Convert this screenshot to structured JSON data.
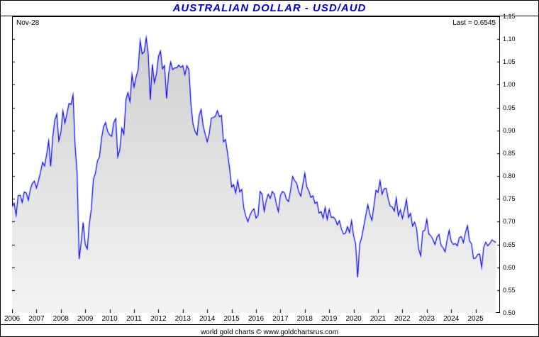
{
  "header": {
    "title": "AUSTRALIAN DOLLAR - USD/AUD"
  },
  "plot": {
    "date_label": "Nov-28",
    "last_label": "Last = 0.6545"
  },
  "footer": {
    "credit": "world gold charts © www.goldchartsrus.com"
  },
  "colors": {
    "title": "#0000c8",
    "line": "#0000ee",
    "fill_top": "#cdcdcd",
    "fill_bottom": "#f4f4f4",
    "axis_text": "#000000",
    "frame": "#000000"
  },
  "chart_data": {
    "type": "area",
    "title": "AUSTRALIAN DOLLAR - USD/AUD",
    "as_of": "Nov-28",
    "last": 0.6545,
    "x_start_year": 2006,
    "x_months_total": 240,
    "x_tick_years": [
      2006,
      2007,
      2008,
      2009,
      2010,
      2011,
      2012,
      2013,
      2014,
      2015,
      2016,
      2017,
      2018,
      2019,
      2020,
      2021,
      2022,
      2023,
      2024,
      2025
    ],
    "ylim": [
      0.5,
      1.15
    ],
    "y_tick_step": 0.05,
    "y_ticks": [
      0.5,
      0.55,
      0.6,
      0.65,
      0.7,
      0.75,
      0.8,
      0.85,
      0.9,
      0.95,
      1.0,
      1.05,
      1.1,
      1.15
    ],
    "grid": false,
    "legend": "none",
    "x_monthly": [
      0.733,
      0.741,
      0.714,
      0.757,
      0.758,
      0.742,
      0.765,
      0.763,
      0.747,
      0.771,
      0.784,
      0.789,
      0.774,
      0.79,
      0.808,
      0.83,
      0.822,
      0.847,
      0.877,
      0.821,
      0.885,
      0.922,
      0.936,
      0.877,
      0.895,
      0.943,
      0.916,
      0.937,
      0.959,
      0.957,
      0.978,
      0.867,
      0.806,
      0.618,
      0.655,
      0.698,
      0.65,
      0.64,
      0.695,
      0.728,
      0.792,
      0.806,
      0.833,
      0.842,
      0.882,
      0.908,
      0.917,
      0.898,
      0.89,
      0.887,
      0.917,
      0.926,
      0.842,
      0.858,
      0.905,
      0.892,
      0.967,
      0.983,
      0.963,
      1.023,
      0.995,
      1.017,
      1.033,
      1.097,
      1.068,
      1.072,
      1.103,
      1.067,
      0.967,
      1.045,
      1.005,
      1.023,
      1.062,
      1.074,
      1.035,
      1.042,
      0.97,
      1.024,
      1.05,
      1.033,
      1.037,
      1.037,
      1.043,
      1.038,
      1.042,
      1.022,
      1.042,
      1.033,
      0.957,
      0.914,
      0.898,
      0.89,
      0.932,
      0.946,
      0.91,
      0.892,
      0.875,
      0.893,
      0.927,
      0.928,
      0.931,
      0.943,
      0.93,
      0.933,
      0.875,
      0.88,
      0.85,
      0.817,
      0.776,
      0.781,
      0.763,
      0.79,
      0.765,
      0.771,
      0.729,
      0.712,
      0.7,
      0.714,
      0.723,
      0.728,
      0.708,
      0.714,
      0.766,
      0.76,
      0.723,
      0.746,
      0.76,
      0.751,
      0.766,
      0.76,
      0.739,
      0.722,
      0.758,
      0.766,
      0.763,
      0.749,
      0.744,
      0.769,
      0.799,
      0.79,
      0.784,
      0.766,
      0.756,
      0.781,
      0.806,
      0.776,
      0.767,
      0.753,
      0.757,
      0.74,
      0.743,
      0.719,
      0.722,
      0.708,
      0.731,
      0.705,
      0.727,
      0.709,
      0.71,
      0.705,
      0.693,
      0.702,
      0.684,
      0.673,
      0.675,
      0.689,
      0.676,
      0.702,
      0.669,
      0.651,
      0.578,
      0.651,
      0.666,
      0.69,
      0.714,
      0.737,
      0.716,
      0.703,
      0.735,
      0.769,
      0.764,
      0.79,
      0.76,
      0.772,
      0.773,
      0.75,
      0.734,
      0.732,
      0.723,
      0.752,
      0.713,
      0.726,
      0.707,
      0.726,
      0.749,
      0.709,
      0.718,
      0.69,
      0.699,
      0.684,
      0.64,
      0.625,
      0.679,
      0.681,
      0.705,
      0.673,
      0.669,
      0.661,
      0.65,
      0.666,
      0.672,
      0.648,
      0.643,
      0.634,
      0.66,
      0.681,
      0.657,
      0.65,
      0.652,
      0.647,
      0.665,
      0.667,
      0.654,
      0.676,
      0.691,
      0.658,
      0.651,
      0.619,
      0.62,
      0.628,
      0.629,
      0.6,
      0.644,
      0.655,
      0.647,
      0.652,
      0.66,
      0.657,
      0.6545
    ]
  }
}
